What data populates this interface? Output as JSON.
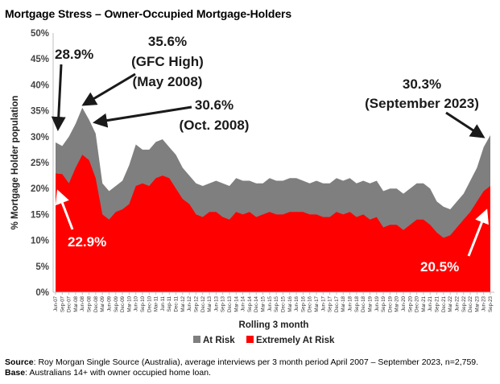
{
  "title": "Mortgage Stress – Owner-Occupied Mortgage-Holders",
  "source_label": "Source",
  "source_text": ": Roy Morgan Single Source (Australia), average interviews per 3 month period April 2007 – September 2023, n=2,759.",
  "base_label": "Base",
  "base_text": ": Australians 14+ with owner occupied home loan.",
  "colors": {
    "at_risk": "#7f7f7f",
    "extremely_at_risk": "#ff0000",
    "axis": "#bfbfbf"
  },
  "chart_data": {
    "type": "area",
    "xlabel": "Rolling 3 month",
    "ylabel": "% Mortgage Holder population",
    "ylim": [
      0,
      50
    ],
    "y_ticks": [
      "0%",
      "5%",
      "10%",
      "15%",
      "20%",
      "25%",
      "30%",
      "35%",
      "40%",
      "45%",
      "50%"
    ],
    "grid": false,
    "legend_position": "bottom",
    "x_tick_labels": [
      "Jun-07",
      "Sep-07",
      "Dec-07",
      "Mar-08",
      "Jun-08",
      "Sep-08",
      "Dec-08",
      "Mar-09",
      "Jun-09",
      "Sep-09",
      "Dec-09",
      "Mar-10",
      "Jun-10",
      "Sep-10",
      "Dec-10",
      "Mar-11",
      "Jun-11",
      "Sep-11",
      "Dec-11",
      "Mar-12",
      "Jun-12",
      "Sep-12",
      "Dec-12",
      "Mar-13",
      "Jun-13",
      "Sep-13",
      "Dec-13",
      "Mar-14",
      "Jun-14",
      "Sep-14",
      "Dec-14",
      "Mar-15",
      "Jun-15",
      "Sep-15",
      "Dec-15",
      "Mar-16",
      "Jun-16",
      "Sep-16",
      "Dec-16",
      "Mar-17",
      "Jun-17",
      "Sep-17",
      "Dec-17",
      "Mar-18",
      "Jun-18",
      "Sep-18",
      "Dec-18",
      "Mar-19",
      "Jun-19",
      "Sep-19",
      "Dec-19",
      "Mar-20",
      "Jun-20",
      "Sep-20",
      "Dec-20",
      "Mar-21",
      "Jun-21",
      "Sep-21",
      "Dec-21",
      "Mar-22",
      "Jun-22",
      "Sep-22",
      "Dec-22",
      "Mar-23",
      "Jun-23",
      "Sep-23"
    ],
    "series": [
      {
        "name": "At Risk",
        "values": [
          28.9,
          28.2,
          30.0,
          32.5,
          35.6,
          33.3,
          30.6,
          21.0,
          19.5,
          20.5,
          21.5,
          24.5,
          28.5,
          27.5,
          27.5,
          29.0,
          29.5,
          28.0,
          26.5,
          24.0,
          22.5,
          21.0,
          20.5,
          21.0,
          21.5,
          21.0,
          20.5,
          22.0,
          21.5,
          21.5,
          21.0,
          21.0,
          22.0,
          21.5,
          21.5,
          22.0,
          22.0,
          21.5,
          21.0,
          21.5,
          21.0,
          21.0,
          22.0,
          21.5,
          22.0,
          21.0,
          21.5,
          21.0,
          21.5,
          19.5,
          20.0,
          20.0,
          19.0,
          20.0,
          21.0,
          21.0,
          20.0,
          17.5,
          16.5,
          16.0,
          17.5,
          19.0,
          21.5,
          24.0,
          28.0,
          30.3
        ]
      },
      {
        "name": "Extremely At Risk",
        "values": [
          22.9,
          22.8,
          21.0,
          24.0,
          26.5,
          25.5,
          22.0,
          15.0,
          14.0,
          15.5,
          16.0,
          17.0,
          20.5,
          21.0,
          20.5,
          22.0,
          22.5,
          22.0,
          20.0,
          18.0,
          17.0,
          15.0,
          14.5,
          15.5,
          15.5,
          14.5,
          14.0,
          15.5,
          15.0,
          15.5,
          14.5,
          15.0,
          15.5,
          15.0,
          15.0,
          15.5,
          15.5,
          15.5,
          15.0,
          15.0,
          14.5,
          14.5,
          15.5,
          15.0,
          15.5,
          14.5,
          15.0,
          14.0,
          14.5,
          12.5,
          13.0,
          13.0,
          12.0,
          13.0,
          14.0,
          14.0,
          13.0,
          11.5,
          10.5,
          11.0,
          12.5,
          14.0,
          15.5,
          17.5,
          19.5,
          20.5
        ]
      }
    ],
    "annotations": [
      {
        "text": "28.9%"
      },
      {
        "text_lines": [
          "35.6%",
          "(GFC High)",
          "(May 2008)"
        ]
      },
      {
        "text_lines": [
          "30.6%",
          "(Oct. 2008)"
        ]
      },
      {
        "text": "22.9%"
      },
      {
        "text_lines": [
          "30.3%",
          "(September 2023)"
        ]
      },
      {
        "text": "20.5%"
      }
    ]
  }
}
